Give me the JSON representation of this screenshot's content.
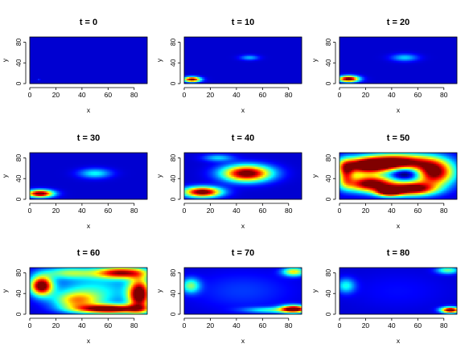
{
  "chart_data": [
    {
      "type": "heatmap",
      "title": "t =  0",
      "xlabel": "x",
      "ylabel": "y",
      "xlim": [
        0,
        90
      ],
      "ylim": [
        0,
        90
      ],
      "xticks": [
        "0",
        "20",
        "40",
        "60",
        "80"
      ],
      "yticks": [
        "0",
        "40",
        "80"
      ],
      "hotspots": [
        {
          "x": 7,
          "y": 7,
          "sx": 0.7,
          "sy": 0.7,
          "a": 0.15
        }
      ]
    },
    {
      "type": "heatmap",
      "title": "t =  10",
      "xlabel": "x",
      "ylabel": "y",
      "xlim": [
        0,
        90
      ],
      "ylim": [
        0,
        90
      ],
      "xticks": [
        "0",
        "20",
        "40",
        "60",
        "80"
      ],
      "yticks": [
        "0",
        "40",
        "80"
      ],
      "hotspots": [
        {
          "x": 6,
          "y": 8,
          "sx": 4.5,
          "sy": 3.5,
          "a": 0.95
        },
        {
          "x": 50,
          "y": 50,
          "sx": 5,
          "sy": 3.5,
          "a": 0.22
        }
      ]
    },
    {
      "type": "heatmap",
      "title": "t =  20",
      "xlabel": "x",
      "ylabel": "y",
      "xlim": [
        0,
        90
      ],
      "ylim": [
        0,
        90
      ],
      "xticks": [
        "0",
        "20",
        "40",
        "60",
        "80"
      ],
      "yticks": [
        "0",
        "40",
        "80"
      ],
      "hotspots": [
        {
          "x": 7,
          "y": 9,
          "sx": 5.5,
          "sy": 4.2,
          "a": 1.0
        },
        {
          "x": 50,
          "y": 50,
          "sx": 7,
          "sy": 5,
          "a": 0.25
        }
      ]
    },
    {
      "type": "heatmap",
      "title": "t =  30",
      "xlabel": "x",
      "ylabel": "y",
      "xlim": [
        0,
        90
      ],
      "ylim": [
        0,
        90
      ],
      "xticks": [
        "0",
        "20",
        "40",
        "60",
        "80"
      ],
      "yticks": [
        "0",
        "40",
        "80"
      ],
      "hotspots": [
        {
          "x": 8,
          "y": 11,
          "sx": 7,
          "sy": 5,
          "a": 1.0
        },
        {
          "x": 50,
          "y": 50,
          "sx": 8.5,
          "sy": 6.5,
          "a": 0.3
        }
      ]
    },
    {
      "type": "heatmap",
      "title": "t =  40",
      "xlabel": "x",
      "ylabel": "y",
      "xlim": [
        0,
        90
      ],
      "ylim": [
        0,
        90
      ],
      "xticks": [
        "0",
        "20",
        "40",
        "60",
        "80"
      ],
      "yticks": [
        "0",
        "40",
        "80"
      ],
      "hotspots": [
        {
          "x": 14,
          "y": 14,
          "sx": 10,
          "sy": 7,
          "a": 1.0
        },
        {
          "x": 48,
          "y": 50,
          "sx": 13,
          "sy": 11,
          "a": 1.0
        },
        {
          "x": 26,
          "y": 80,
          "sx": 8,
          "sy": 5,
          "a": 0.25
        }
      ]
    },
    {
      "type": "heatmap",
      "title": "t =  50",
      "xlabel": "x",
      "ylabel": "y",
      "xlim": [
        0,
        90
      ],
      "ylim": [
        0,
        90
      ],
      "xticks": [
        "0",
        "20",
        "40",
        "60",
        "80"
      ],
      "yticks": [
        "0",
        "40",
        "80"
      ],
      "hotspots": [
        {
          "x": 20,
          "y": 65,
          "sx": 14,
          "sy": 11,
          "a": 1.0
        },
        {
          "x": 24,
          "y": 30,
          "sx": 14,
          "sy": 11,
          "a": 1.0
        },
        {
          "x": 72,
          "y": 52,
          "sx": 11,
          "sy": 18,
          "a": 1.0
        },
        {
          "x": 45,
          "y": 72,
          "sx": 16,
          "sy": 11,
          "a": 0.95
        },
        {
          "x": 56,
          "y": 20,
          "sx": 12,
          "sy": 9,
          "a": 0.95
        },
        {
          "x": 38,
          "y": 14,
          "sx": 7,
          "sy": 6,
          "a": 0.85
        },
        {
          "x": 5,
          "y": 50,
          "sx": 4,
          "sy": 16,
          "a": 0.55
        },
        {
          "x": 52,
          "y": 50,
          "sx": 9,
          "sy": 9,
          "a": -0.4
        }
      ]
    },
    {
      "type": "heatmap",
      "title": "t =  60",
      "xlabel": "x",
      "ylabel": "y",
      "xlim": [
        0,
        90
      ],
      "ylim": [
        0,
        90
      ],
      "xticks": [
        "0",
        "20",
        "40",
        "60",
        "80"
      ],
      "yticks": [
        "0",
        "40",
        "80"
      ],
      "hotspots": [
        {
          "x": 9,
          "y": 55,
          "sx": 6,
          "sy": 13,
          "a": 1.0
        },
        {
          "x": 62,
          "y": 10,
          "sx": 18,
          "sy": 6,
          "a": 1.0
        },
        {
          "x": 84,
          "y": 38,
          "sx": 6,
          "sy": 22,
          "a": 1.0
        },
        {
          "x": 70,
          "y": 80,
          "sx": 14,
          "sy": 8,
          "a": 0.85
        },
        {
          "x": 36,
          "y": 26,
          "sx": 12,
          "sy": 12,
          "a": 0.5
        },
        {
          "x": 30,
          "y": 80,
          "sx": 14,
          "sy": 8,
          "a": 0.4
        },
        {
          "x": 50,
          "y": 45,
          "sx": 22,
          "sy": 22,
          "a": 0.3
        }
      ]
    },
    {
      "type": "heatmap",
      "title": "t =  70",
      "xlabel": "x",
      "ylabel": "y",
      "xlim": [
        0,
        90
      ],
      "ylim": [
        0,
        90
      ],
      "xticks": [
        "0",
        "20",
        "40",
        "60",
        "80"
      ],
      "yticks": [
        "0",
        "40",
        "80"
      ],
      "hotspots": [
        {
          "x": 84,
          "y": 10,
          "sx": 7,
          "sy": 5,
          "a": 1.0
        },
        {
          "x": 84,
          "y": 82,
          "sx": 6,
          "sy": 6,
          "a": 0.55
        },
        {
          "x": 5,
          "y": 55,
          "sx": 5,
          "sy": 10,
          "a": 0.4
        },
        {
          "x": 66,
          "y": 8,
          "sx": 14,
          "sy": 4,
          "a": 0.3
        },
        {
          "x": 45,
          "y": 45,
          "sx": 28,
          "sy": 26,
          "a": 0.1
        }
      ]
    },
    {
      "type": "heatmap",
      "title": "t =  80",
      "xlabel": "x",
      "ylabel": "y",
      "xlim": [
        0,
        90
      ],
      "ylim": [
        0,
        90
      ],
      "xticks": [
        "0",
        "20",
        "40",
        "60",
        "80"
      ],
      "yticks": [
        "0",
        "40",
        "80"
      ],
      "hotspots": [
        {
          "x": 85,
          "y": 8,
          "sx": 5,
          "sy": 4,
          "a": 1.0
        },
        {
          "x": 83,
          "y": 85,
          "sx": 6,
          "sy": 5,
          "a": 0.4
        },
        {
          "x": 5,
          "y": 55,
          "sx": 5,
          "sy": 10,
          "a": 0.3
        },
        {
          "x": 45,
          "y": 45,
          "sx": 28,
          "sy": 26,
          "a": 0.05
        }
      ]
    }
  ]
}
